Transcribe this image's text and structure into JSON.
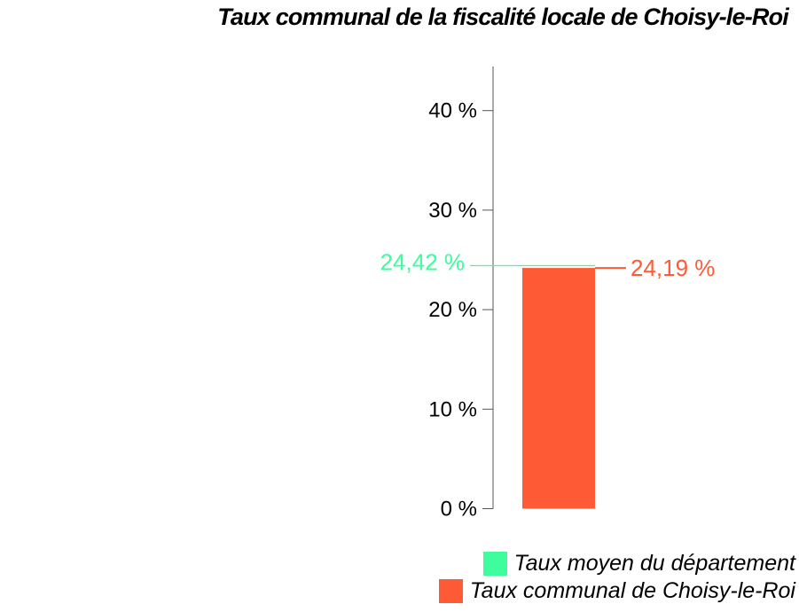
{
  "chart_data": {
    "type": "bar",
    "title": "Taux communal de la fiscalité locale de Choisy-le-Roi",
    "ylim": [
      0,
      45
    ],
    "y_ticks": [
      {
        "value": 0,
        "label": "0 %"
      },
      {
        "value": 10,
        "label": "10 %"
      },
      {
        "value": 20,
        "label": "20 %"
      },
      {
        "value": 30,
        "label": "30 %"
      },
      {
        "value": 40,
        "label": "40 %"
      }
    ],
    "series": [
      {
        "name": "Taux communal de Choisy-le-Roi",
        "mark": "bar",
        "value": 24.19,
        "label": "24,19 %",
        "color": "#ff5a36"
      },
      {
        "name": "Taux moyen du département",
        "mark": "reference-line",
        "value": 24.42,
        "label": "24,42 %",
        "color": "#3dfd9c"
      }
    ],
    "legend": {
      "position": "bottom-right",
      "items": [
        {
          "label": "Taux moyen du département",
          "color": "#3dfd9c"
        },
        {
          "label": "Taux communal de Choisy-le-Roi",
          "color": "#ff5a36"
        }
      ]
    },
    "grid": false
  }
}
